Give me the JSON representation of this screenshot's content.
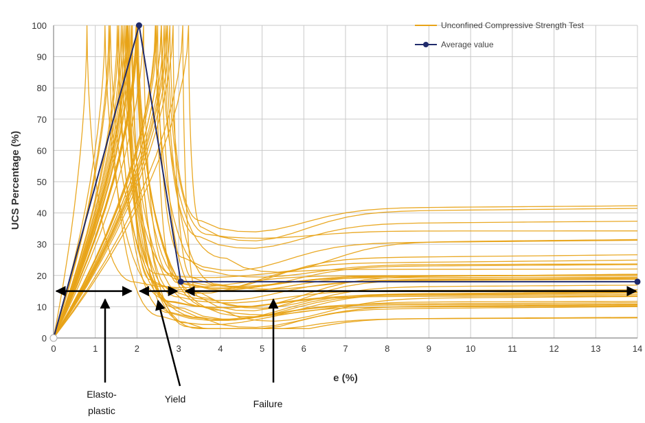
{
  "chart_data": {
    "type": "line",
    "xlabel": "e (%)",
    "ylabel": "UCS Percentage (%)",
    "xlim": [
      0,
      14
    ],
    "ylim": [
      0,
      100
    ],
    "x_ticks": [
      0,
      1,
      2,
      3,
      4,
      5,
      6,
      7,
      8,
      9,
      10,
      11,
      12,
      13,
      14
    ],
    "y_ticks": [
      0,
      10,
      20,
      30,
      40,
      50,
      60,
      70,
      80,
      90,
      100
    ],
    "grid": true,
    "legend_position": "top-right",
    "legend": [
      {
        "label": "Unconfined Compressive Strength Test",
        "color": "#E8A317"
      },
      {
        "label": "Average value",
        "color": "#1F2A6B"
      }
    ],
    "test_curves": {
      "count": 36,
      "color": "#E8A317",
      "peak_value": 100,
      "peak_strain_range": [
        0.8,
        3.6
      ],
      "residual_range": [
        5,
        42
      ]
    },
    "series": [
      {
        "name": "Average value",
        "color": "#1F2A6B",
        "x": [
          0,
          2.05,
          3.05,
          14
        ],
        "y": [
          0,
          100,
          18,
          18
        ]
      }
    ],
    "phases": [
      {
        "label": "Elasto-\nplastic",
        "x_start": 0,
        "x_end": 1.9
      },
      {
        "label": "Yield",
        "x_start": 2.0,
        "x_end": 3.0
      },
      {
        "label": "Failure",
        "x_start": 3.1,
        "x_end": 14
      }
    ],
    "phase_arrow_y": 15
  }
}
